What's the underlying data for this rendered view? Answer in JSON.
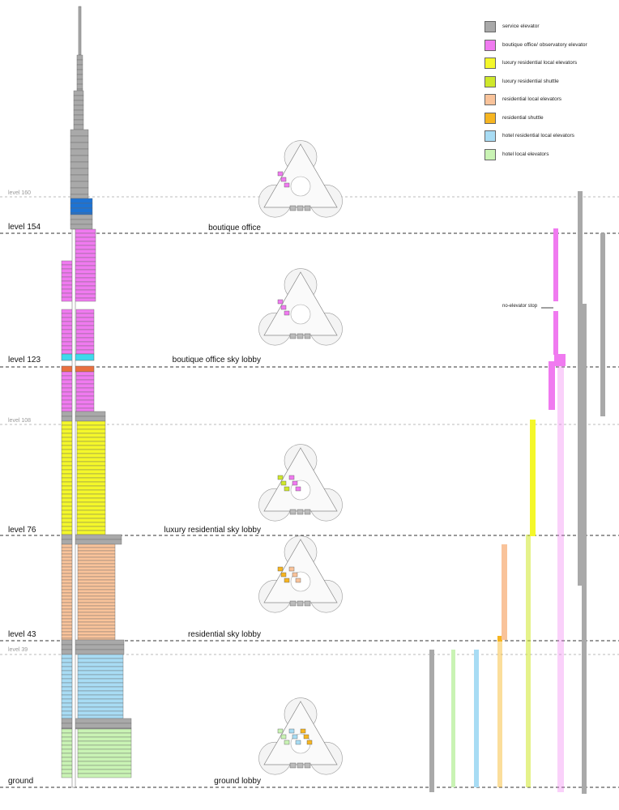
{
  "legend": [
    {
      "key": "service",
      "label": "service elevator",
      "color": "#a9a9a9"
    },
    {
      "key": "boutique",
      "label": "boutique office/ observatory elevator",
      "color": "#f07af0"
    },
    {
      "key": "lux_local",
      "label": "luxury residential local elevators",
      "color": "#f4f72a"
    },
    {
      "key": "lux_shuttle",
      "label": "luxury residential shuttle",
      "color": "#cfe82b"
    },
    {
      "key": "res_local",
      "label": "residential local elevators",
      "color": "#f9c39a"
    },
    {
      "key": "res_shuttle",
      "label": "residential shuttle",
      "color": "#f6b521"
    },
    {
      "key": "hotel_res_local",
      "label": "hotel residential local elevators",
      "color": "#a8dcf4"
    },
    {
      "key": "hotel_local",
      "label": "hotel local elevators",
      "color": "#c9f3b4"
    }
  ],
  "levels": [
    {
      "label": "level 160",
      "kind": "minor"
    },
    {
      "label": "level 154",
      "kind": "major"
    },
    {
      "label": "level 123",
      "kind": "major"
    },
    {
      "label": "level 108",
      "kind": "minor"
    },
    {
      "label": "level 76",
      "kind": "major"
    },
    {
      "label": "level 43",
      "kind": "major"
    },
    {
      "label": "level 39",
      "kind": "minor"
    },
    {
      "label": "ground",
      "kind": "major"
    }
  ],
  "lobbies": [
    "boutique office",
    "boutique office sky lobby",
    "luxury residential sky lobby",
    "residential sky lobby",
    "ground lobby"
  ],
  "annotation": "no-elevator stop"
}
